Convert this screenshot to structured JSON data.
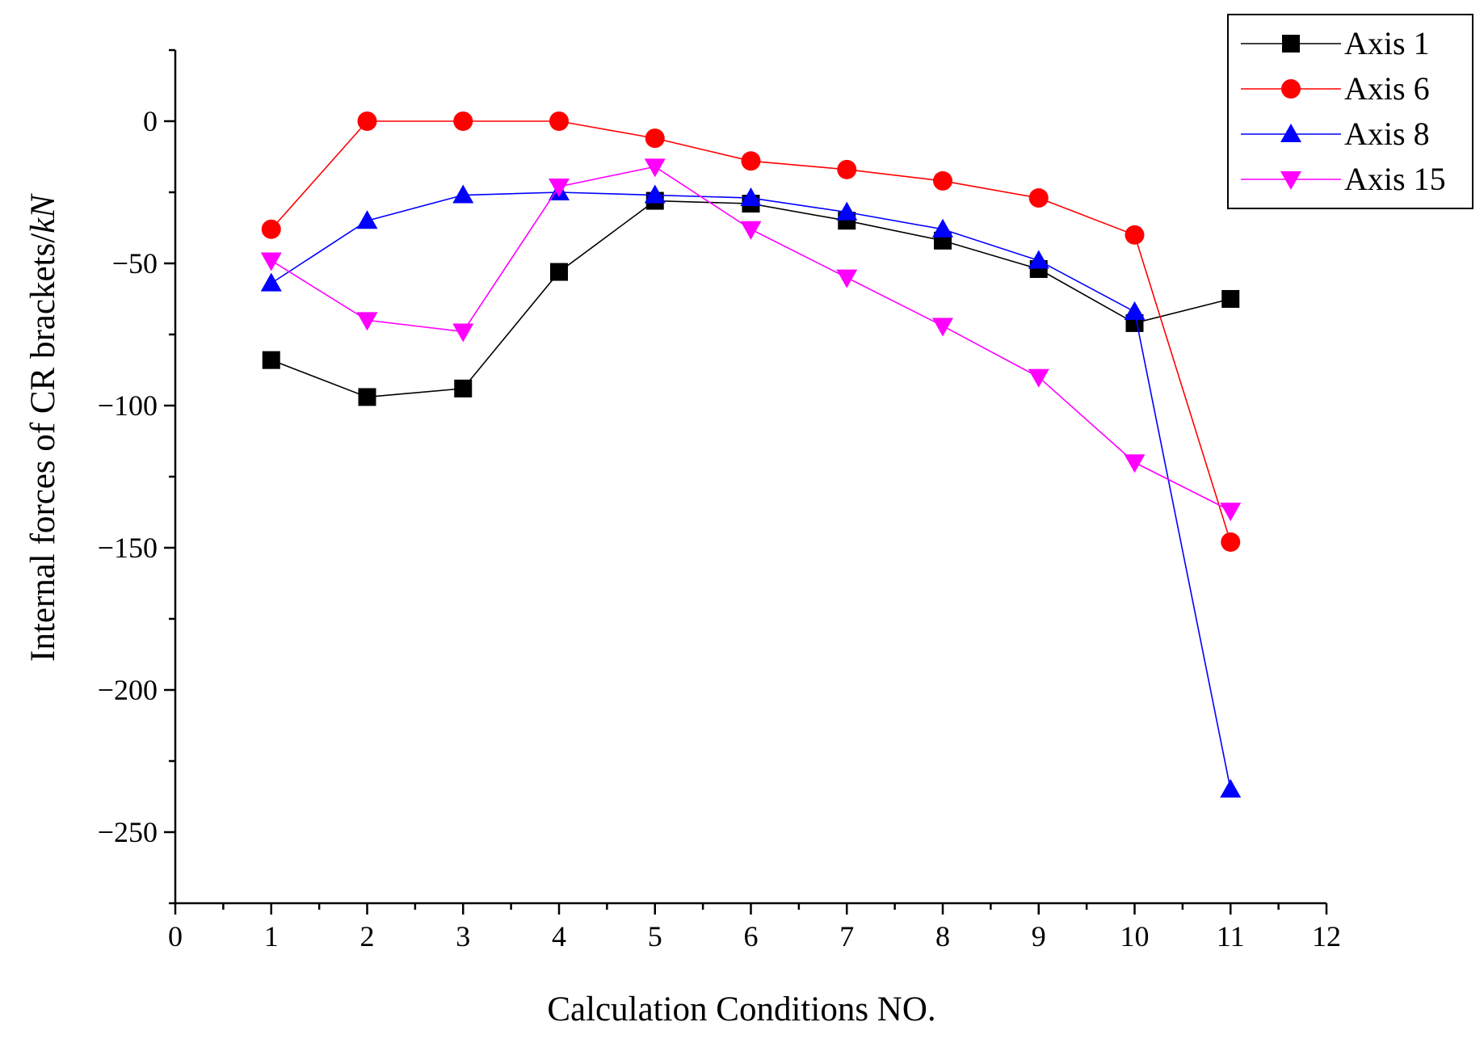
{
  "chart_data": {
    "type": "line",
    "title": "",
    "xlabel": "Calculation Conditions NO.",
    "ylabel": "Internal forces of CR brackets/",
    "ylabel_unit": "kN",
    "xlim": [
      0,
      12
    ],
    "ylim": [
      -275,
      25
    ],
    "x_ticks": [
      0,
      1,
      2,
      3,
      4,
      5,
      6,
      7,
      8,
      9,
      10,
      11,
      12
    ],
    "y_ticks": [
      0,
      -50,
      -100,
      -150,
      -200,
      -250
    ],
    "y_tick_labels": [
      "0",
      "−50",
      "−100",
      "−150",
      "−200",
      "−250"
    ],
    "grid": false,
    "legend_position": "top-right",
    "x": [
      1,
      2,
      3,
      4,
      5,
      6,
      7,
      8,
      9,
      10,
      11
    ],
    "series": [
      {
        "name": "Axis 1",
        "color": "#000000",
        "marker": "square",
        "values": [
          -84,
          -97,
          -94,
          -53,
          -28,
          -29,
          -35,
          -42,
          -52,
          -71,
          -62.5
        ]
      },
      {
        "name": "Axis 6",
        "color": "#ff0000",
        "marker": "circle",
        "values": [
          -38,
          0,
          0,
          0,
          -6,
          -14,
          -17,
          -21,
          -27,
          -40,
          -148
        ]
      },
      {
        "name": "Axis 8",
        "color": "#0000ff",
        "marker": "triangle-up",
        "values": [
          -57,
          -35,
          -26,
          -25,
          -26,
          -27,
          -32,
          -38,
          -49,
          -67,
          -235
        ]
      },
      {
        "name": "Axis 15",
        "color": "#ff00ff",
        "marker": "triangle-down",
        "values": [
          -49,
          -70,
          -74,
          -23,
          -16,
          -38,
          -55,
          -72,
          -90,
          -120,
          -137
        ]
      }
    ]
  }
}
